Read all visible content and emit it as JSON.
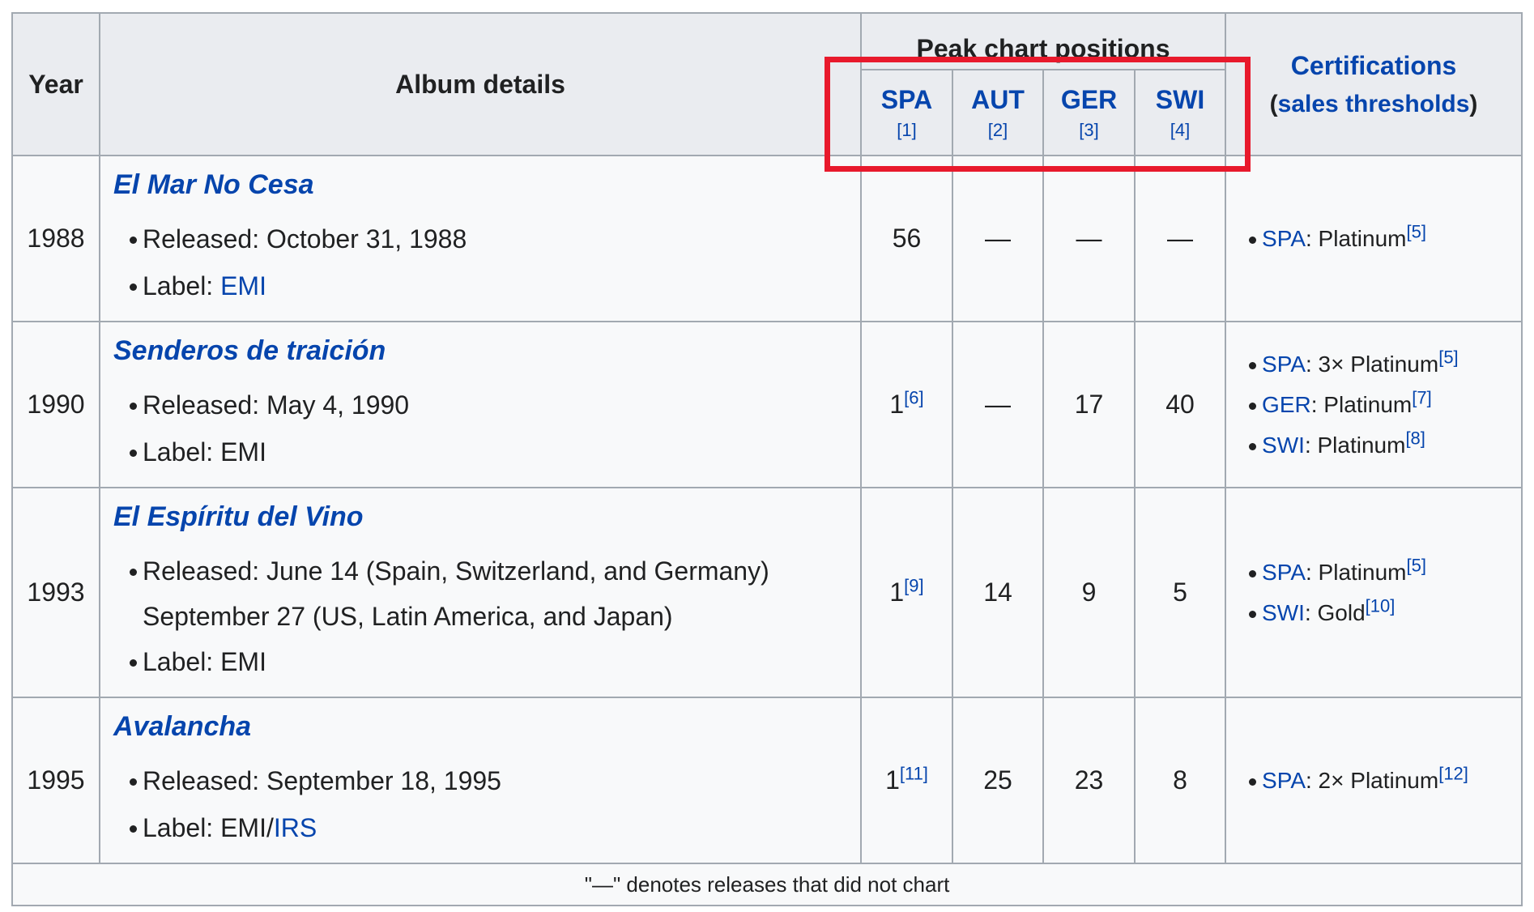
{
  "headers": {
    "year": "Year",
    "album_details": "Album details",
    "peak_chart_positions": "Peak chart positions",
    "certifications": "Certifications",
    "sales_thresholds": "sales thresholds",
    "open_paren": "(",
    "close_paren": ")",
    "countries": [
      {
        "code": "SPA",
        "ref": "[1]"
      },
      {
        "code": "AUT",
        "ref": "[2]"
      },
      {
        "code": "GER",
        "ref": "[3]"
      },
      {
        "code": "SWI",
        "ref": "[4]"
      }
    ]
  },
  "rows": [
    {
      "year": "1988",
      "title": "El Mar No Cesa",
      "released_label": "Released: ",
      "released": "October 31, 1988",
      "label_label": "Label: ",
      "label": "EMI",
      "positions": [
        {
          "value": "56",
          "ref": ""
        },
        {
          "value": "—",
          "ref": ""
        },
        {
          "value": "—",
          "ref": ""
        },
        {
          "value": "—",
          "ref": ""
        }
      ],
      "certs": [
        {
          "country": "SPA",
          "text": ": Platinum",
          "ref": "[5]"
        }
      ]
    },
    {
      "year": "1990",
      "title": "Senderos de traición",
      "released_label": "Released: ",
      "released": "May 4, 1990",
      "label_label": "Label: ",
      "label": "EMI",
      "positions": [
        {
          "value": "1",
          "ref": "[6]"
        },
        {
          "value": "—",
          "ref": ""
        },
        {
          "value": "17",
          "ref": ""
        },
        {
          "value": "40",
          "ref": ""
        }
      ],
      "certs": [
        {
          "country": "SPA",
          "text": ": 3× Platinum",
          "ref": "[5]"
        },
        {
          "country": "GER",
          "text": ": Platinum",
          "ref": "[7]"
        },
        {
          "country": "SWI",
          "text": ": Platinum",
          "ref": "[8]"
        }
      ]
    },
    {
      "year": "1993",
      "title": "El Espíritu del Vino",
      "released_label": "Released: ",
      "released": "June 14 (Spain, Switzerland, and Germany)",
      "released_cont": "September 27 (US, Latin America, and Japan)",
      "label_label": "Label: ",
      "label": "EMI",
      "positions": [
        {
          "value": "1",
          "ref": "[9]"
        },
        {
          "value": "14",
          "ref": ""
        },
        {
          "value": "9",
          "ref": ""
        },
        {
          "value": "5",
          "ref": ""
        }
      ],
      "certs": [
        {
          "country": "SPA",
          "text": ": Platinum",
          "ref": "[5]"
        },
        {
          "country": "SWI",
          "text": ": Gold",
          "ref": "[10]"
        }
      ]
    },
    {
      "year": "1995",
      "title": "Avalancha",
      "released_label": "Released: ",
      "released": "September 18, 1995",
      "label_label": "Label: ",
      "label": "EMI/",
      "label_link": "IRS",
      "positions": [
        {
          "value": "1",
          "ref": "[11]"
        },
        {
          "value": "25",
          "ref": ""
        },
        {
          "value": "23",
          "ref": ""
        },
        {
          "value": "8",
          "ref": ""
        }
      ],
      "certs": [
        {
          "country": "SPA",
          "text": ": 2× Platinum",
          "ref": "[12]"
        }
      ]
    }
  ],
  "footer": "\"—\" denotes releases that did not chart",
  "highlight_color": "#e8192c",
  "link_color": "#0645ad"
}
